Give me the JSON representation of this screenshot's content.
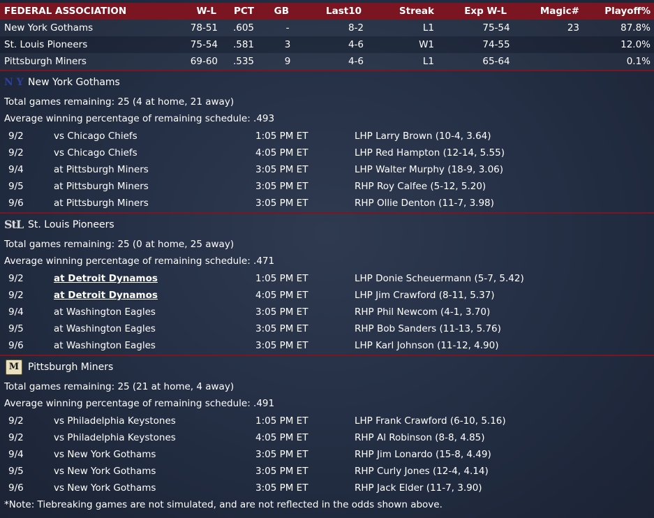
{
  "standings": {
    "league": "FEDERAL ASSOCIATION",
    "columns": {
      "wl": "W-L",
      "pct": "PCT",
      "gb": "GB",
      "last10": "Last10",
      "streak": "Streak",
      "exp": "Exp W-L",
      "magic": "Magic#",
      "playoff": "Playoff%"
    },
    "rows": [
      {
        "team": "New York Gothams",
        "wl": "78-51",
        "pct": ".605",
        "gb": "-",
        "last10": "8-2",
        "streak": "L1",
        "exp": "75-54",
        "magic": "23",
        "playoff": "87.8%"
      },
      {
        "team": "St. Louis Pioneers",
        "wl": "75-54",
        "pct": ".581",
        "gb": "3",
        "last10": "4-6",
        "streak": "W1",
        "exp": "74-55",
        "magic": "",
        "playoff": "12.0%"
      },
      {
        "team": "Pittsburgh Miners",
        "wl": "69-60",
        "pct": ".535",
        "gb": "9",
        "last10": "4-6",
        "streak": "L1",
        "exp": "65-64",
        "magic": "",
        "playoff": "0.1%"
      }
    ]
  },
  "teams": [
    {
      "name": "New York Gothams",
      "logo_text": "N Y",
      "remaining": "Total games remaining: 25 (4 at home, 21 away)",
      "avg": "Average winning percentage of remaining schedule: .493",
      "games": [
        {
          "date": "9/2",
          "opp": "vs Chicago Chiefs",
          "time": "1:05 PM ET",
          "pitcher": "LHP Larry Brown (10-4, 3.64)"
        },
        {
          "date": "9/2",
          "opp": "vs Chicago Chiefs",
          "time": "4:05 PM ET",
          "pitcher": "LHP Red Hampton (12-14, 5.55)"
        },
        {
          "date": "9/4",
          "opp": "at Pittsburgh Miners",
          "time": "3:05 PM ET",
          "pitcher": "LHP Walter Murphy (18-9, 3.06)"
        },
        {
          "date": "9/5",
          "opp": "at Pittsburgh Miners",
          "time": "3:05 PM ET",
          "pitcher": "RHP Roy Calfee (5-12, 5.20)"
        },
        {
          "date": "9/6",
          "opp": "at Pittsburgh Miners",
          "time": "3:05 PM ET",
          "pitcher": "RHP Ollie Denton (11-7, 3.98)"
        }
      ]
    },
    {
      "name": "St. Louis Pioneers",
      "logo_text": "StL",
      "remaining": "Total games remaining: 25 (0 at home, 25 away)",
      "avg": "Average winning percentage of remaining schedule: .471",
      "games": [
        {
          "date": "9/2",
          "opp": "at Detroit Dynamos",
          "time": "1:05 PM ET",
          "pitcher": "LHP Donie Scheuermann (5-7, 5.42)"
        },
        {
          "date": "9/2",
          "opp": "at Detroit Dynamos",
          "time": "4:05 PM ET",
          "pitcher": "LHP Jim Crawford (8-11, 5.37)"
        },
        {
          "date": "9/4",
          "opp": "at Washington Eagles",
          "time": "3:05 PM ET",
          "pitcher": "RHP Phil Newcom (4-1, 3.70)"
        },
        {
          "date": "9/5",
          "opp": "at Washington Eagles",
          "time": "3:05 PM ET",
          "pitcher": "RHP Bob Sanders (11-13, 5.76)"
        },
        {
          "date": "9/6",
          "opp": "at Washington Eagles",
          "time": "3:05 PM ET",
          "pitcher": "LHP Karl Johnson (11-12, 4.90)"
        }
      ]
    },
    {
      "name": "Pittsburgh Miners",
      "logo_text": "M",
      "remaining": "Total games remaining: 25 (21 at home, 4 away)",
      "avg": "Average winning percentage of remaining schedule: .491",
      "games": [
        {
          "date": "9/2",
          "opp": "vs Philadelphia Keystones",
          "time": "1:05 PM ET",
          "pitcher": "LHP Frank Crawford (6-10, 5.16)"
        },
        {
          "date": "9/2",
          "opp": "vs Philadelphia Keystones",
          "time": "4:05 PM ET",
          "pitcher": "RHP Al Robinson (8-8, 4.85)"
        },
        {
          "date": "9/4",
          "opp": "vs New York Gothams",
          "time": "3:05 PM ET",
          "pitcher": "RHP Jim Lonardo (15-8, 4.49)"
        },
        {
          "date": "9/5",
          "opp": "vs New York Gothams",
          "time": "3:05 PM ET",
          "pitcher": "RHP Curly Jones (12-4, 4.14)"
        },
        {
          "date": "9/6",
          "opp": "vs New York Gothams",
          "time": "3:05 PM ET",
          "pitcher": "RHP Jack Elder (11-7, 3.90)"
        }
      ]
    }
  ],
  "note": "*Note: Tiebreaking games are not simulated, and are not reflected in the odds shown above."
}
